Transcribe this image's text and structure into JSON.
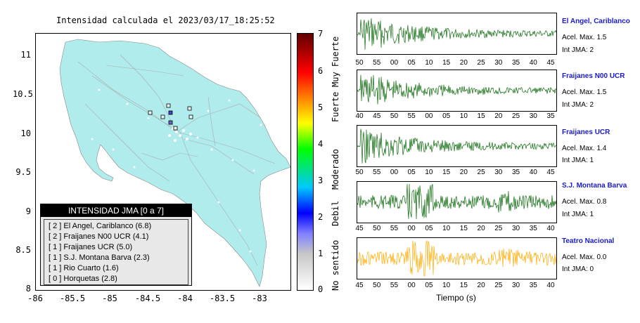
{
  "title": "Intensidad calculada el 2023/03/17_18:25:52",
  "map": {
    "y_ticks": [
      "11",
      "10.5",
      "10",
      "9.5",
      "9",
      "8.5",
      "8"
    ],
    "x_ticks": [
      "-86",
      "-85.5",
      "-85",
      "-84.5",
      "-84",
      "-83.5",
      "-83"
    ]
  },
  "legend": {
    "header": "INTENSIDAD JMA [0 a 7]",
    "items": [
      "[ 2 ]  El Angel, Cariblanco (6.8)",
      "[ 2 ]  Fraijanes N00 UCR (4.1)",
      "[ 1 ]  Fraijanes UCR (5.0)",
      "[ 1 ]  S.J. Montana Barva (2.3)",
      "[ 1 ]  Rio Cuarto (1.6)",
      "[ 0 ]  Horquetas (2.8)"
    ]
  },
  "colorbar": {
    "ticks": [
      "7",
      "6",
      "5",
      "4",
      "3",
      "2",
      "1",
      "0"
    ],
    "labels": [
      "Muy Fuerte",
      "Fuerte",
      "Moderado",
      "Debil",
      "No sentido"
    ]
  },
  "stations": [
    {
      "name": "El Angel, Cariblanco",
      "acel": "Acel. Max. 1.5",
      "jma": "Int JMA: 2",
      "color": "#0a6a0a",
      "ticks": [
        "50",
        "55",
        "00",
        "05",
        "10",
        "15",
        "20",
        "25",
        "30",
        "35",
        "40",
        "45"
      ]
    },
    {
      "name": "Fraijanes N00 UCR",
      "acel": "Acel. Max. 1.5",
      "jma": "Int JMA: 2",
      "color": "#0a6a0a",
      "ticks": [
        "40",
        "45",
        "50",
        "55",
        "00",
        "05",
        "10",
        "15",
        "20",
        "25",
        "30",
        "35"
      ]
    },
    {
      "name": "Fraijanes UCR",
      "acel": "Acel. Max. 1.4",
      "jma": "Int JMA: 1",
      "color": "#0a6a0a",
      "ticks": [
        "50",
        "55",
        "00",
        "05",
        "10",
        "15",
        "20",
        "25",
        "30",
        "35",
        "40",
        "45"
      ]
    },
    {
      "name": "S.J. Montana Barva",
      "acel": "Acel. Max. 0.8",
      "jma": "Int JMA: 1",
      "color": "#0a6a0a",
      "ticks": [
        "45",
        "50",
        "55",
        "00",
        "05",
        "10",
        "15",
        "20",
        "25",
        "30",
        "35",
        "40"
      ]
    },
    {
      "name": "Teatro Nacional",
      "acel": "Acel. Max. 0.0",
      "jma": "Int JMA: 0",
      "color": "#ffaa00",
      "ticks": [
        "45",
        "50",
        "55",
        "00",
        "05",
        "10",
        "15",
        "20",
        "25",
        "30",
        "35",
        "40"
      ]
    }
  ],
  "xlabel": "Tiempo (s)"
}
